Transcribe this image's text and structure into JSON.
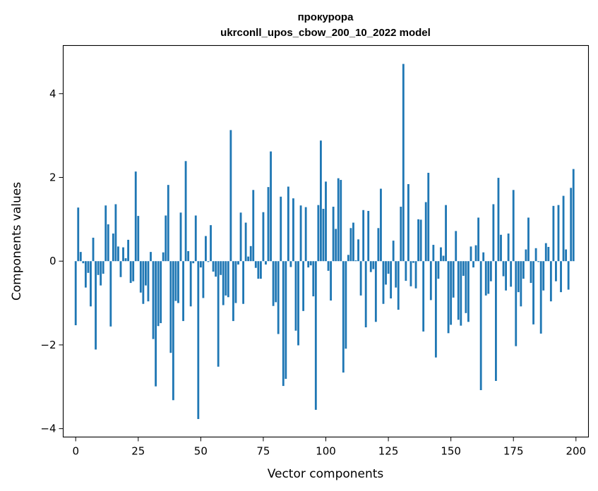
{
  "chart_data": {
    "type": "bar",
    "title": "прокурора",
    "subtitle": "ukrconll_upos_cbow_200_10_2022 model",
    "xlabel": "Vector components",
    "ylabel": "Components values",
    "xlim": [
      -5,
      205
    ],
    "ylim": [
      -4.2,
      5.15
    ],
    "x_ticks": [
      0,
      25,
      50,
      75,
      100,
      125,
      150,
      175,
      200
    ],
    "y_ticks": [
      -4,
      -2,
      0,
      2,
      4
    ],
    "y_tick_labels": [
      "−4",
      "−2",
      "0",
      "2",
      "4"
    ],
    "bar_color": "#1f77b4",
    "grid": false,
    "values": [
      -1.53,
      1.28,
      0.22,
      -0.05,
      -0.63,
      -0.28,
      -1.08,
      0.56,
      -2.11,
      -0.33,
      -0.58,
      -0.3,
      1.33,
      0.88,
      -1.56,
      0.66,
      1.36,
      0.35,
      -0.38,
      0.33,
      0.07,
      0.51,
      -0.52,
      -0.48,
      2.14,
      1.08,
      -0.75,
      -1.02,
      -0.58,
      -0.96,
      0.22,
      -1.86,
      -2.99,
      -1.55,
      -1.48,
      0.21,
      1.09,
      1.82,
      -2.19,
      -3.32,
      -0.95,
      -1.0,
      1.16,
      -1.43,
      2.39,
      0.24,
      -1.08,
      -0.05,
      1.09,
      -3.77,
      -0.15,
      -0.88,
      0.6,
      -0.02,
      0.86,
      -0.25,
      -0.37,
      -2.52,
      -0.33,
      -1.05,
      -0.82,
      -0.86,
      3.13,
      -1.43,
      -1.0,
      -0.08,
      1.16,
      -1.02,
      0.92,
      0.11,
      0.36,
      1.7,
      -0.16,
      -0.42,
      -0.42,
      1.17,
      -0.08,
      1.77,
      2.62,
      -1.07,
      -0.98,
      -1.74,
      1.54,
      -2.98,
      -2.81,
      1.78,
      -0.14,
      1.5,
      -1.66,
      -2.01,
      1.33,
      -1.19,
      1.29,
      -0.15,
      -0.1,
      -0.84,
      -3.55,
      1.34,
      2.88,
      1.25,
      1.9,
      -0.23,
      -0.94,
      1.3,
      0.77,
      1.98,
      1.94,
      -2.66,
      -2.09,
      0.15,
      0.79,
      0.92,
      0.02,
      0.52,
      -0.82,
      1.22,
      -1.58,
      1.2,
      -0.26,
      -0.19,
      -1.45,
      0.79,
      1.73,
      -1.02,
      -0.56,
      -0.3,
      -0.89,
      0.49,
      -0.63,
      -1.16,
      1.3,
      4.71,
      -0.47,
      1.84,
      -0.6,
      -0.04,
      -0.65,
      1.0,
      0.99,
      -1.68,
      1.41,
      2.11,
      -0.93,
      0.39,
      -2.3,
      -0.42,
      0.33,
      0.13,
      1.34,
      -1.72,
      -1.52,
      -0.87,
      0.72,
      -1.4,
      -1.54,
      -0.35,
      -1.24,
      -1.45,
      0.35,
      -0.15,
      0.38,
      1.04,
      -3.08,
      0.21,
      -0.82,
      -0.78,
      -0.48,
      1.36,
      -2.86,
      1.99,
      0.63,
      -0.36,
      -0.7,
      0.66,
      -0.61,
      1.7,
      -2.03,
      -0.74,
      -1.08,
      -0.42,
      0.28,
      1.04,
      -0.52,
      -1.51,
      0.31,
      -0.02,
      -1.73,
      -0.7,
      0.43,
      0.34,
      -0.96,
      1.32,
      -0.48,
      1.34,
      -0.74,
      1.56,
      0.28,
      -0.68,
      1.75,
      2.2
    ]
  }
}
